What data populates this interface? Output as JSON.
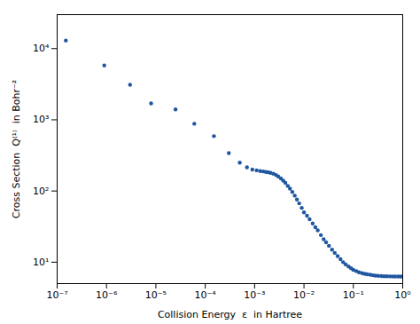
{
  "chart_data": {
    "type": "scatter",
    "x": [
      1.5e-07,
      9e-07,
      3e-06,
      8e-06,
      2.5e-05,
      6e-05,
      0.00015,
      0.0003,
      0.0005,
      0.0007,
      0.0009,
      0.0011,
      0.0013,
      0.0015,
      0.0017,
      0.0019,
      0.0021,
      0.0024,
      0.0027,
      0.003,
      0.0034,
      0.0038,
      0.0042,
      0.0047,
      0.0052,
      0.0058,
      0.0065,
      0.0072,
      0.008,
      0.009,
      0.01,
      0.0115,
      0.013,
      0.015,
      0.017,
      0.019,
      0.022,
      0.025,
      0.028,
      0.032,
      0.037,
      0.042,
      0.048,
      0.055,
      0.062,
      0.07,
      0.08,
      0.09,
      0.1,
      0.115,
      0.13,
      0.15,
      0.17,
      0.19,
      0.22,
      0.25,
      0.28,
      0.32,
      0.37,
      0.42,
      0.48,
      0.55,
      0.62,
      0.7,
      0.8,
      0.9,
      1.0
    ],
    "values": [
      13000,
      5800,
      3100,
      1700,
      1400,
      880,
      590,
      340,
      250,
      215,
      200,
      195,
      190,
      188,
      185,
      183,
      180,
      175,
      168,
      160,
      150,
      140,
      130,
      118,
      108,
      97,
      86,
      76,
      67,
      58,
      50,
      45,
      40,
      35,
      31,
      28,
      24,
      21,
      19,
      17,
      15,
      13.5,
      12.2,
      11.0,
      10.0,
      9.3,
      8.7,
      8.2,
      7.8,
      7.5,
      7.2,
      7.0,
      6.85,
      6.75,
      6.65,
      6.55,
      6.48,
      6.42,
      6.38,
      6.35,
      6.33,
      6.32,
      6.31,
      6.3,
      6.29,
      6.28,
      6.27
    ],
    "color": "#1f56a0",
    "marker": "circle",
    "xlabel": "Collision Energy  ε  in Hartree",
    "ylabel": "Cross Section  Q⁽¹⁾  in Bohr⁻²",
    "log": true,
    "grid": false,
    "xlim": [
      1e-07,
      1
    ],
    "ylim": [
      5,
      30000
    ],
    "xticks": [
      {
        "value": 1e-07,
        "label": "10⁻⁷"
      },
      {
        "value": 1e-06,
        "label": "10⁻⁶"
      },
      {
        "value": 1e-05,
        "label": "10⁻⁵"
      },
      {
        "value": 0.0001,
        "label": "10⁻⁴"
      },
      {
        "value": 0.001,
        "label": "10⁻³"
      },
      {
        "value": 0.01,
        "label": "10⁻²"
      },
      {
        "value": 0.1,
        "label": "10⁻¹"
      },
      {
        "value": 1,
        "label": "10⁰"
      }
    ],
    "yticks": [
      {
        "value": 10,
        "label": "10¹"
      },
      {
        "value": 100,
        "label": "10²"
      },
      {
        "value": 1000,
        "label": "10³"
      },
      {
        "value": 10000,
        "label": "10⁴"
      }
    ]
  }
}
